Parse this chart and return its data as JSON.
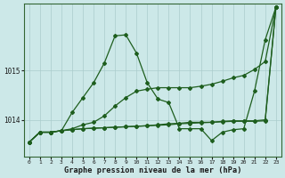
{
  "bg_color": "#cce8e8",
  "grid_color": "#aacccc",
  "line_color": "#1e5e1e",
  "title": "Graphe pression niveau de la mer (hPa)",
  "ylim": [
    1013.25,
    1016.35
  ],
  "xlim": [
    -0.5,
    23.5
  ],
  "series": [
    [
      1013.55,
      1013.75,
      1013.75,
      1013.78,
      1014.15,
      1014.45,
      1014.75,
      1015.15,
      1015.7,
      1015.72,
      1015.35,
      1014.75,
      1014.42,
      1014.35,
      1013.82,
      1013.82,
      1013.82,
      1013.58,
      1013.75,
      1013.8,
      1013.82,
      1014.58,
      1015.62,
      1016.28
    ],
    [
      1013.55,
      1013.75,
      1013.75,
      1013.78,
      1013.82,
      1013.9,
      1013.95,
      1014.08,
      1014.28,
      1014.45,
      1014.58,
      1014.62,
      1014.65,
      1014.65,
      1014.65,
      1014.65,
      1014.68,
      1014.72,
      1014.78,
      1014.85,
      1014.9,
      1015.02,
      1015.18,
      1016.28
    ],
    [
      1013.55,
      1013.75,
      1013.75,
      1013.78,
      1013.8,
      1013.82,
      1013.83,
      1013.84,
      1013.85,
      1013.86,
      1013.87,
      1013.88,
      1013.9,
      1013.92,
      1013.93,
      1013.95,
      1013.95,
      1013.95,
      1013.97,
      1013.98,
      1013.98,
      1013.98,
      1014.0,
      1016.28
    ],
    [
      1013.55,
      1013.75,
      1013.75,
      1013.78,
      1013.8,
      1013.82,
      1013.83,
      1013.84,
      1013.85,
      1013.86,
      1013.87,
      1013.88,
      1013.89,
      1013.9,
      1013.92,
      1013.93,
      1013.94,
      1013.95,
      1013.96,
      1013.97,
      1013.97,
      1013.97,
      1013.98,
      1016.28
    ]
  ]
}
